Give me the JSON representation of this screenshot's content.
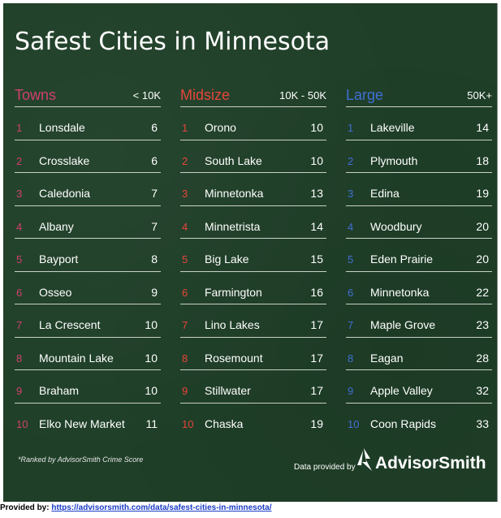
{
  "title": "Safest Cities in Minnesota",
  "columns": [
    {
      "name": "Towns",
      "range": "< 10K",
      "color": "#d0406c",
      "rows": [
        {
          "rank": "1",
          "city": "Lonsdale",
          "score": "6"
        },
        {
          "rank": "2",
          "city": "Crosslake",
          "score": "6"
        },
        {
          "rank": "3",
          "city": "Caledonia",
          "score": "7"
        },
        {
          "rank": "4",
          "city": "Albany",
          "score": "7"
        },
        {
          "rank": "5",
          "city": "Bayport",
          "score": "8"
        },
        {
          "rank": "6",
          "city": "Osseo",
          "score": "9"
        },
        {
          "rank": "7",
          "city": "La Crescent",
          "score": "10"
        },
        {
          "rank": "8",
          "city": "Mountain Lake",
          "score": "10"
        },
        {
          "rank": "9",
          "city": "Braham",
          "score": "10"
        },
        {
          "rank": "10",
          "city": "Elko New Market",
          "score": "11"
        }
      ]
    },
    {
      "name": "Midsize",
      "range": "10K - 50K",
      "color": "#e8443a",
      "rows": [
        {
          "rank": "1",
          "city": "Orono",
          "score": "10"
        },
        {
          "rank": "2",
          "city": "South Lake",
          "score": "10"
        },
        {
          "rank": "3",
          "city": "Minnetonka",
          "score": "13"
        },
        {
          "rank": "4",
          "city": "Minnetrista",
          "score": "14"
        },
        {
          "rank": "5",
          "city": "Big Lake",
          "score": "15"
        },
        {
          "rank": "6",
          "city": "Farmington",
          "score": "16"
        },
        {
          "rank": "7",
          "city": "Lino Lakes",
          "score": "17"
        },
        {
          "rank": "8",
          "city": "Rosemount",
          "score": "17"
        },
        {
          "rank": "9",
          "city": "Stillwater",
          "score": "17"
        },
        {
          "rank": "10",
          "city": "Chaska",
          "score": "19"
        }
      ]
    },
    {
      "name": "Large",
      "range": "50K+",
      "color": "#3f6fd6",
      "rows": [
        {
          "rank": "1",
          "city": "Lakeville",
          "score": "14"
        },
        {
          "rank": "2",
          "city": "Plymouth",
          "score": "18"
        },
        {
          "rank": "3",
          "city": "Edina",
          "score": "19"
        },
        {
          "rank": "4",
          "city": "Woodbury",
          "score": "20"
        },
        {
          "rank": "5",
          "city": "Eden Prairie",
          "score": "20"
        },
        {
          "rank": "6",
          "city": "Minnetonka",
          "score": "22"
        },
        {
          "rank": "7",
          "city": "Maple Grove",
          "score": "23"
        },
        {
          "rank": "8",
          "city": "Eagan",
          "score": "28"
        },
        {
          "rank": "9",
          "city": "Apple Valley",
          "score": "32"
        },
        {
          "rank": "10",
          "city": "Coon Rapids",
          "score": "33"
        }
      ]
    }
  ],
  "footnote": "*Ranked by AdvisorSmith Crime Score",
  "provided_label": "Data provided by",
  "brand": "AdvisorSmith",
  "source": {
    "label": "Provided by:",
    "url": "https://advisorsmith.com/data/safest-cities-in-minnesota/"
  },
  "colors": {
    "background": "#1f3f28",
    "text": "#ffffff"
  }
}
